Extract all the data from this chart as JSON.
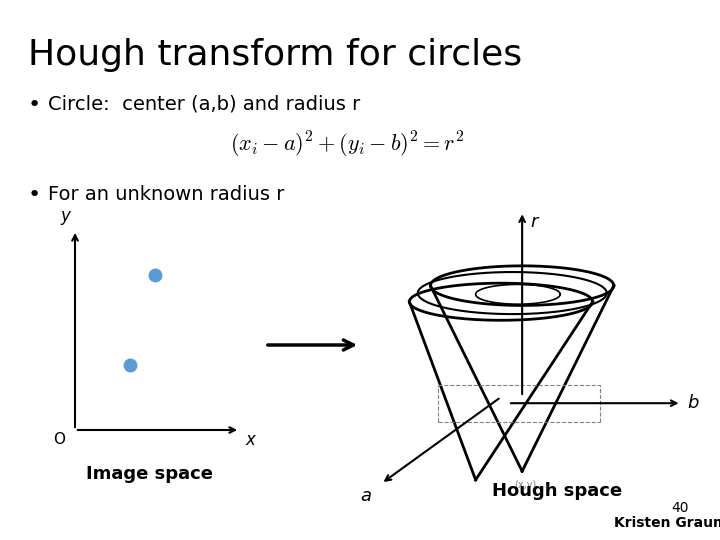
{
  "title": "Hough transform for circles",
  "bullet1": "Circle:  center (a,b) and radius r",
  "formula": "$(x_i - a)^2 + (y_i - b)^2 = r^2$",
  "bullet2": "For an unknown radius r",
  "image_space_label": "Image space",
  "hough_space_label": "Hough space",
  "point_color": "#5b9bd5",
  "background_color": "#ffffff",
  "footer_number": "40",
  "footer_name": "Kristen Grauman",
  "title_fontsize": 26,
  "bullet_fontsize": 14,
  "formula_fontsize": 16
}
